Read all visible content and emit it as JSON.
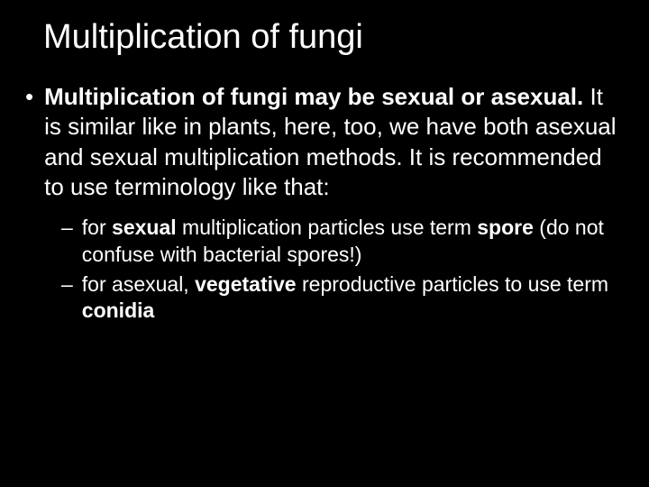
{
  "background_color": "#000000",
  "text_color": "#ffffff",
  "title": "Multiplication of fungi",
  "title_fontsize": 38,
  "main_bullet": {
    "bold_lead": "Multiplication of fungi may be sexual or asexual. ",
    "rest": "It is similar like in plants, here, too, we have both asexual and sexual multiplication methods. It is recommended to use terminology like that:",
    "fontsize": 26
  },
  "sub_bullets": [
    {
      "pre1": "for ",
      "b1": "sexual",
      "mid1": " multiplication particles use term ",
      "b2": "spore",
      "post1": " (do not confuse with bacterial spores!)"
    },
    {
      "pre1": "for asexual, ",
      "b1": "vegetative",
      "mid1": " reproductive particles to use term ",
      "b2": "conidia",
      "post1": ""
    }
  ],
  "sub_fontsize": 23
}
